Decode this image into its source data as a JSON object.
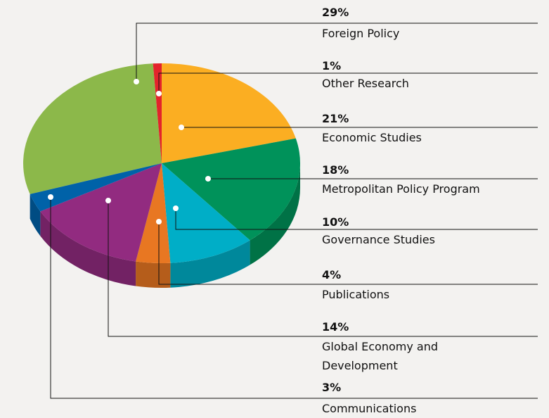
{
  "chart_data": {
    "type": "pie3d",
    "categories": [
      "Foreign Policy",
      "Other Research",
      "Economic Studies",
      "Metropolitan Policy Program",
      "Governance Studies",
      "Publications",
      "Global Economy and Development",
      "Communications"
    ],
    "values": [
      29,
      1,
      21,
      18,
      10,
      4,
      14,
      3
    ],
    "value_labels": [
      "29%",
      "1%",
      "21%",
      "18%",
      "10%",
      "4%",
      "14%",
      "3%"
    ],
    "colors": [
      "#8cb84a",
      "#e3242b",
      "#fbae22",
      "#00925a",
      "#00aec7",
      "#e87722",
      "#922b80",
      "#0062a8"
    ]
  }
}
